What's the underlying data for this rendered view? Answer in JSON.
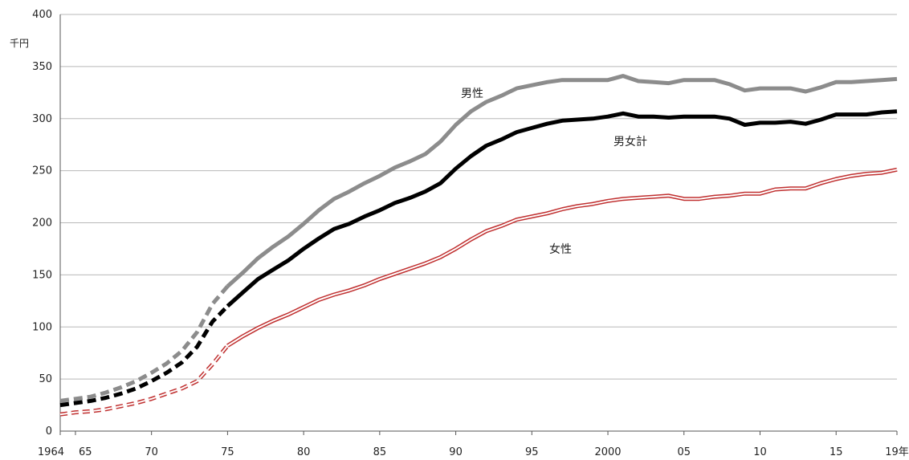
{
  "chart_data": {
    "type": "line",
    "ylabel": "千円",
    "ylim": [
      0,
      400
    ],
    "yticks": [
      "0",
      "50",
      "100",
      "150",
      "200",
      "250",
      "300",
      "350",
      "400"
    ],
    "xlim": [
      1964,
      2019
    ],
    "xticks": [
      {
        "x": 1964,
        "label": "1964"
      },
      {
        "x": 1965,
        "label": "65"
      },
      {
        "x": 1970,
        "label": "70"
      },
      {
        "x": 1975,
        "label": "75"
      },
      {
        "x": 1980,
        "label": "80"
      },
      {
        "x": 1985,
        "label": "85"
      },
      {
        "x": 1990,
        "label": "90"
      },
      {
        "x": 1995,
        "label": "95"
      },
      {
        "x": 2000,
        "label": "2000"
      },
      {
        "x": 2005,
        "label": "05"
      },
      {
        "x": 2010,
        "label": "10"
      },
      {
        "x": 2015,
        "label": "15"
      },
      {
        "x": 2019,
        "label": "19年"
      }
    ],
    "grid": "horizontal",
    "note": "1964–1975 segment drawn dashed",
    "series": [
      {
        "name": "男性",
        "color": "#8c8c8c",
        "x": [
          1964,
          1965,
          1966,
          1967,
          1968,
          1969,
          1970,
          1971,
          1972,
          1973,
          1974,
          1975,
          1976,
          1977,
          1978,
          1979,
          1980,
          1981,
          1982,
          1983,
          1984,
          1985,
          1986,
          1987,
          1988,
          1989,
          1990,
          1991,
          1992,
          1993,
          1994,
          1995,
          1996,
          1997,
          1998,
          1999,
          2000,
          2001,
          2002,
          2003,
          2004,
          2005,
          2006,
          2007,
          2008,
          2009,
          2010,
          2011,
          2012,
          2013,
          2014,
          2015,
          2016,
          2017,
          2018,
          2019
        ],
        "values": [
          29,
          31,
          33,
          37,
          42,
          48,
          56,
          65,
          77,
          95,
          122,
          139,
          152,
          166,
          177,
          187,
          199,
          212,
          223,
          230,
          238,
          245,
          253,
          259,
          266,
          278,
          294,
          307,
          316,
          322,
          329,
          332,
          335,
          337,
          337,
          337,
          337,
          341,
          336,
          335,
          334,
          337,
          337,
          337,
          333,
          327,
          329,
          329,
          329,
          326,
          330,
          335,
          335,
          336,
          337,
          338
        ]
      },
      {
        "name": "男女計",
        "color": "#000000",
        "x": [
          1964,
          1965,
          1966,
          1967,
          1968,
          1969,
          1970,
          1971,
          1972,
          1973,
          1974,
          1975,
          1976,
          1977,
          1978,
          1979,
          1980,
          1981,
          1982,
          1983,
          1984,
          1985,
          1986,
          1987,
          1988,
          1989,
          1990,
          1991,
          1992,
          1993,
          1994,
          1995,
          1996,
          1997,
          1998,
          1999,
          2000,
          2001,
          2002,
          2003,
          2004,
          2005,
          2006,
          2007,
          2008,
          2009,
          2010,
          2011,
          2012,
          2013,
          2014,
          2015,
          2016,
          2017,
          2018,
          2019
        ],
        "values": [
          25,
          27,
          29,
          32,
          36,
          41,
          48,
          56,
          66,
          81,
          105,
          120,
          133,
          146,
          155,
          164,
          175,
          185,
          194,
          199,
          206,
          212,
          219,
          224,
          230,
          238,
          252,
          264,
          274,
          280,
          287,
          291,
          295,
          298,
          299,
          300,
          302,
          305,
          302,
          302,
          301,
          302,
          302,
          302,
          300,
          294,
          296,
          296,
          297,
          295,
          299,
          304,
          304,
          304,
          306,
          307
        ]
      },
      {
        "name": "女性",
        "color": "#c03030",
        "x": [
          1964,
          1965,
          1966,
          1967,
          1968,
          1969,
          1970,
          1971,
          1972,
          1973,
          1974,
          1975,
          1976,
          1977,
          1978,
          1979,
          1980,
          1981,
          1982,
          1983,
          1984,
          1985,
          1986,
          1987,
          1988,
          1989,
          1990,
          1991,
          1992,
          1993,
          1994,
          1995,
          1996,
          1997,
          1998,
          1999,
          2000,
          2001,
          2002,
          2003,
          2004,
          2005,
          2006,
          2007,
          2008,
          2009,
          2010,
          2011,
          2012,
          2013,
          2014,
          2015,
          2016,
          2017,
          2018,
          2019
        ],
        "values": [
          16,
          18,
          19,
          21,
          24,
          27,
          31,
          36,
          41,
          48,
          64,
          82,
          91,
          99,
          106,
          112,
          119,
          126,
          131,
          135,
          140,
          146,
          151,
          156,
          161,
          167,
          175,
          184,
          192,
          197,
          203,
          206,
          209,
          213,
          216,
          218,
          221,
          223,
          224,
          225,
          226,
          223,
          223,
          225,
          226,
          228,
          228,
          232,
          233,
          233,
          238,
          242,
          245,
          247,
          248,
          251
        ]
      }
    ]
  }
}
